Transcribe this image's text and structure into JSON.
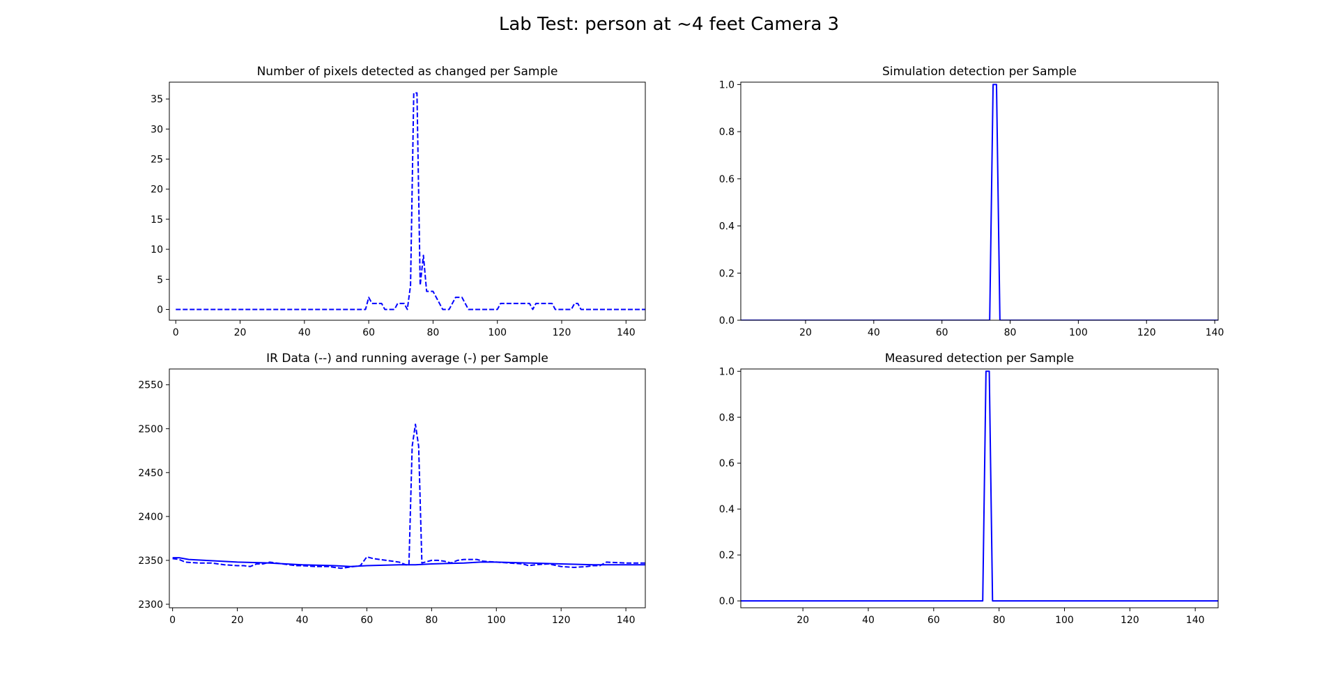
{
  "figure": {
    "suptitle": "Lab Test: person at ~4 feet Camera 3"
  },
  "chart_data": [
    {
      "type": "line",
      "title": "Number of pixels detected as changed per Sample",
      "xlabel": "",
      "ylabel": "",
      "xlim": [
        -2,
        146
      ],
      "ylim": [
        -1.8,
        37.8
      ],
      "xticks": [
        0,
        20,
        40,
        60,
        80,
        100,
        120,
        140
      ],
      "yticks": [
        0,
        5,
        10,
        15,
        20,
        25,
        30,
        35
      ],
      "grid": false,
      "series": [
        {
          "style": "dashed",
          "color": "#0000ff",
          "x": [
            0,
            59,
            60,
            61,
            62,
            63,
            64,
            65,
            66,
            67,
            68,
            69,
            70,
            71,
            72,
            73,
            74,
            75,
            76,
            77,
            78,
            79,
            80,
            81,
            82,
            83,
            84,
            85,
            86,
            87,
            88,
            89,
            90,
            91,
            92,
            93,
            94,
            95,
            96,
            97,
            98,
            99,
            100,
            101,
            102,
            103,
            104,
            105,
            106,
            107,
            108,
            109,
            110,
            111,
            112,
            113,
            114,
            115,
            116,
            117,
            118,
            119,
            120,
            121,
            122,
            123,
            124,
            125,
            126,
            127,
            128,
            146
          ],
          "y": [
            0,
            0,
            2,
            1,
            1,
            1,
            1,
            0,
            0,
            0,
            0,
            1,
            1,
            1,
            0,
            4,
            36,
            36,
            4,
            9,
            3,
            3,
            3,
            2,
            1,
            0,
            0,
            0,
            1,
            2,
            2,
            2,
            1,
            0,
            0,
            0,
            0,
            0,
            0,
            0,
            0,
            0,
            0,
            1,
            1,
            1,
            1,
            1,
            1,
            1,
            1,
            1,
            1,
            0,
            1,
            1,
            1,
            1,
            1,
            1,
            0,
            0,
            0,
            0,
            0,
            0,
            1,
            1,
            0,
            0,
            0,
            0
          ]
        }
      ]
    },
    {
      "type": "line",
      "title": "Simulation detection per Sample",
      "xlabel": "",
      "ylabel": "",
      "xlim": [
        1,
        141
      ],
      "ylim": [
        0,
        1.01
      ],
      "xticks": [
        20,
        40,
        60,
        80,
        100,
        120,
        140
      ],
      "yticks": [
        0.0,
        0.2,
        0.4,
        0.6,
        0.8,
        1.0
      ],
      "ytick_labels": [
        "0.0",
        "0.2",
        "0.4",
        "0.6",
        "0.8",
        "1.0"
      ],
      "grid": false,
      "series": [
        {
          "style": "solid",
          "color": "#0000ff",
          "x": [
            1,
            74,
            75,
            76,
            77,
            141
          ],
          "y": [
            0,
            0,
            1,
            1,
            0,
            0
          ]
        }
      ]
    },
    {
      "type": "line",
      "title": "IR Data (--) and running average (-) per Sample",
      "xlabel": "",
      "ylabel": "",
      "xlim": [
        -1,
        146
      ],
      "ylim": [
        2296,
        2568
      ],
      "xticks": [
        0,
        20,
        40,
        60,
        80,
        100,
        120,
        140
      ],
      "yticks": [
        2300,
        2350,
        2400,
        2450,
        2500,
        2550
      ],
      "grid": false,
      "series": [
        {
          "style": "dashed",
          "color": "#0000ff",
          "x": [
            0,
            2,
            4,
            8,
            12,
            16,
            20,
            22,
            24,
            26,
            28,
            30,
            32,
            34,
            36,
            38,
            40,
            44,
            48,
            50,
            52,
            54,
            56,
            58,
            59,
            60,
            62,
            64,
            66,
            68,
            70,
            72,
            73,
            74,
            75,
            76,
            77,
            78,
            80,
            82,
            84,
            86,
            88,
            90,
            94,
            96,
            100,
            104,
            108,
            110,
            112,
            116,
            120,
            124,
            128,
            130,
            132,
            134,
            140,
            146
          ],
          "y": [
            2352,
            2351,
            2348,
            2347,
            2347,
            2345,
            2344,
            2344,
            2343,
            2346,
            2346,
            2348,
            2347,
            2346,
            2345,
            2344,
            2344,
            2343,
            2343,
            2342,
            2341,
            2342,
            2343,
            2344,
            2349,
            2354,
            2352,
            2351,
            2350,
            2349,
            2348,
            2345,
            2345,
            2480,
            2505,
            2480,
            2347,
            2348,
            2350,
            2350,
            2349,
            2347,
            2350,
            2351,
            2351,
            2349,
            2348,
            2347,
            2346,
            2344,
            2345,
            2346,
            2343,
            2342,
            2343,
            2344,
            2344,
            2348,
            2347,
            2347
          ]
        },
        {
          "style": "solid",
          "color": "#0000ff",
          "x": [
            0,
            2,
            5,
            10,
            20,
            30,
            40,
            50,
            55,
            60,
            70,
            75,
            80,
            90,
            95,
            100,
            110,
            120,
            130,
            146
          ],
          "y": [
            2353,
            2353,
            2351,
            2350,
            2348,
            2347,
            2345,
            2344,
            2343,
            2344,
            2345,
            2345,
            2346,
            2347,
            2348,
            2348,
            2347,
            2346,
            2345,
            2345
          ]
        }
      ]
    },
    {
      "type": "line",
      "title": "Measured detection per Sample",
      "xlabel": "",
      "ylabel": "",
      "xlim": [
        1,
        147
      ],
      "ylim": [
        -0.03,
        1.01
      ],
      "xticks": [
        20,
        40,
        60,
        80,
        100,
        120,
        140
      ],
      "yticks": [
        0.0,
        0.2,
        0.4,
        0.6,
        0.8,
        1.0
      ],
      "ytick_labels": [
        "0.0",
        "0.2",
        "0.4",
        "0.6",
        "0.8",
        "1.0"
      ],
      "grid": false,
      "series": [
        {
          "style": "solid",
          "color": "#0000ff",
          "x": [
            1,
            75,
            76,
            77,
            78,
            147
          ],
          "y": [
            0,
            0,
            1,
            1,
            0,
            0
          ]
        }
      ]
    }
  ]
}
